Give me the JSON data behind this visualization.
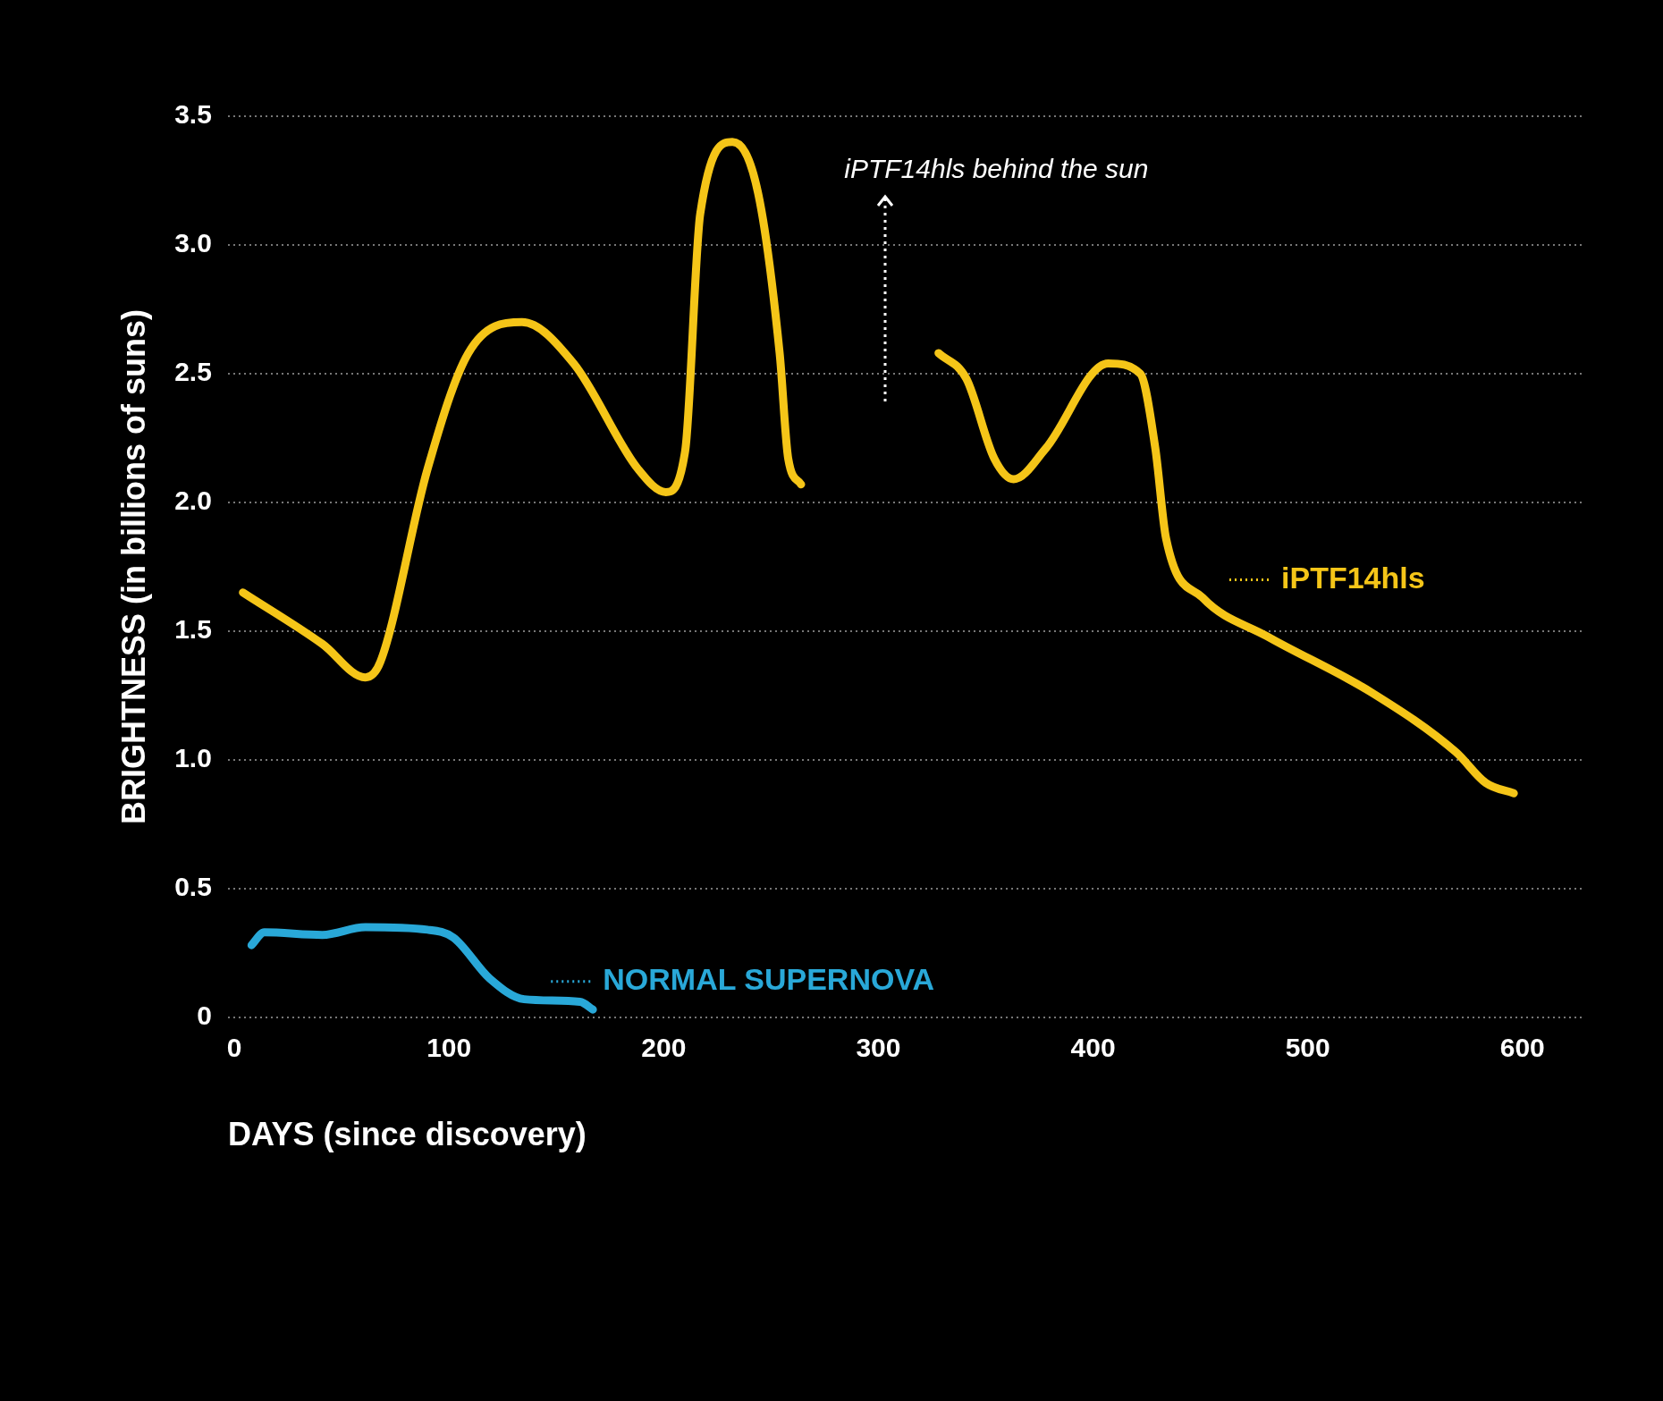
{
  "chart_data": {
    "type": "line",
    "xlabel": "DAYS (since discovery)",
    "ylabel": "BRIGHTNESS (in billions of suns)",
    "xlim": [
      -3,
      628
    ],
    "xticks": [
      0,
      100,
      200,
      300,
      400,
      500,
      600
    ],
    "ylim": [
      0,
      3.5
    ],
    "yticks": [
      0,
      0.5,
      {
        "value": 1,
        "label": "1.0"
      },
      1.5,
      {
        "value": 2,
        "label": "2.0"
      },
      2.5,
      {
        "value": 3,
        "label": "3.0"
      },
      3.5
    ],
    "grid": "y",
    "legend": "right",
    "marker": "none",
    "line_style": "solid",
    "annotations": [
      "iPTF14hls behind the sun"
    ],
    "series": [
      {
        "name": "iPTF14hls",
        "color": "#f5c518",
        "x": [
          4,
          41,
          61,
          68,
          90,
          109,
          134,
          158,
          188,
          201,
          210,
          217,
          232,
          244,
          254,
          258,
          264,
          296,
          328,
          341,
          354,
          363,
          378,
          407,
          422,
          429,
          434,
          451,
          481,
          530,
          569,
          583,
          596
        ],
        "values": [
          1.65,
          1.45,
          1.32,
          1.38,
          2.13,
          2.58,
          2.7,
          2.54,
          2.13,
          2.04,
          2.2,
          3.12,
          3.4,
          3.2,
          2.58,
          2.17,
          2.07,
          null,
          2.58,
          2.48,
          2.17,
          2.09,
          2.21,
          2.54,
          2.5,
          2.21,
          1.86,
          1.63,
          1.48,
          1.26,
          1.03,
          0.91,
          0.87
        ]
      },
      {
        "name": "NORMAL SUPERNOVA",
        "color": "#29a8d8",
        "x": [
          8,
          14,
          41,
          61,
          90,
          102,
          119,
          135,
          161,
          167
        ],
        "values": [
          0.28,
          0.33,
          0.32,
          0.35,
          0.34,
          0.31,
          0.15,
          0.07,
          0.06,
          0.03
        ]
      }
    ]
  }
}
